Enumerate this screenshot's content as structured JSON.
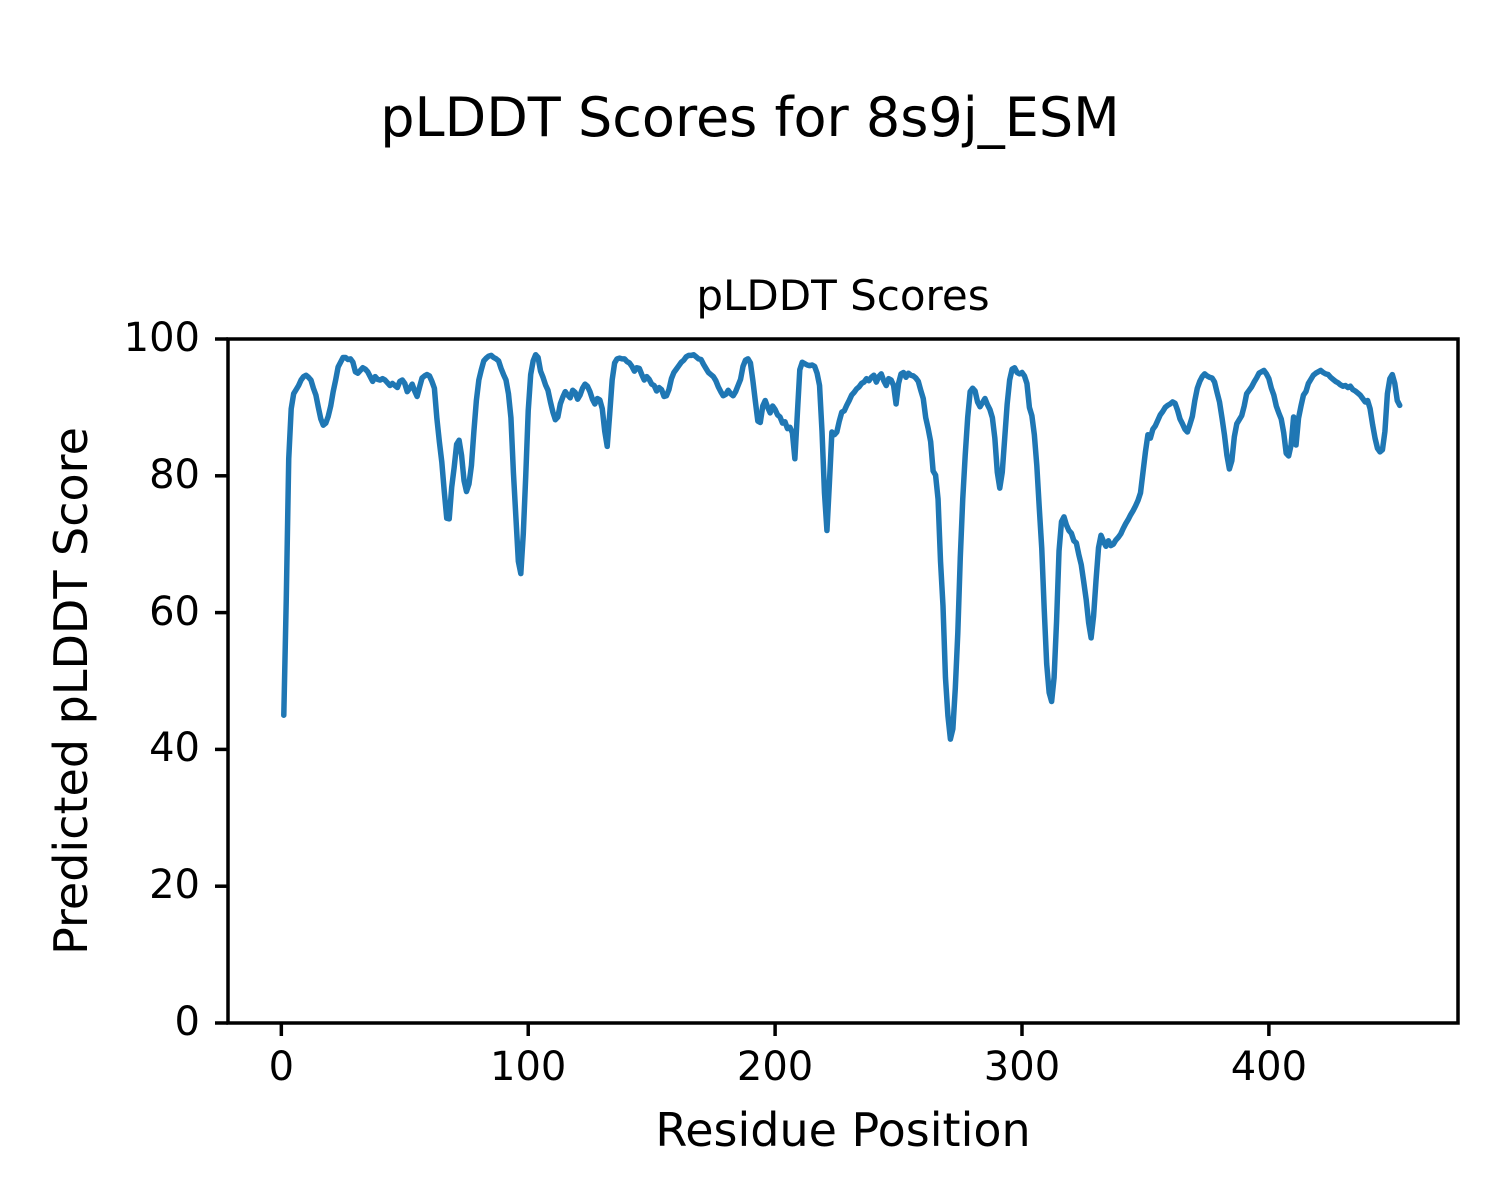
{
  "page": {
    "suptitle": "pLDDT Scores for 8s9j_ESM"
  },
  "chart_data": {
    "type": "line",
    "title": "pLDDT Scores",
    "xlabel": "Residue Position",
    "ylabel": "Predicted pLDDT Score",
    "x_ticks": [
      0,
      100,
      200,
      300,
      400
    ],
    "y_ticks": [
      0,
      20,
      40,
      60,
      80,
      100
    ],
    "xlim": [
      -21.6,
      476.6
    ],
    "ylim": [
      0,
      100
    ],
    "grid": false,
    "legend": "none",
    "line_color": "#1f77b4",
    "axis_color": "#000000",
    "x_start": 1,
    "x_step": 1,
    "values": [
      45,
      62,
      82.5,
      89.8,
      92,
      92.6,
      93.2,
      94,
      94.5,
      94.7,
      94.4,
      94,
      92.8,
      91.8,
      90,
      88.3,
      87.4,
      87.7,
      88.7,
      90.2,
      92.3,
      94,
      95.9,
      96.6,
      97.3,
      97.3,
      97,
      97.1,
      96.6,
      95.2,
      95,
      95.4,
      95.8,
      95.6,
      95.2,
      94.5,
      93.8,
      94.5,
      94.1,
      94,
      94.2,
      94,
      93.6,
      93.2,
      93.5,
      93.2,
      92.9,
      93.8,
      94,
      93.5,
      92.3,
      92.8,
      93.4,
      92.4,
      91.6,
      93,
      94.3,
      94.6,
      94.8,
      94.6,
      93.8,
      92.8,
      88.4,
      85,
      82,
      77.7,
      73.8,
      73.7,
      78.3,
      81.2,
      84.6,
      85.2,
      83,
      79.3,
      77.7,
      78.8,
      81.5,
      86.5,
      91,
      94,
      95.5,
      96.8,
      97.2,
      97.5,
      97.6,
      97.3,
      97.1,
      96.8,
      95.7,
      94.8,
      94,
      92,
      88.5,
      80.5,
      74,
      67.5,
      65.7,
      71.5,
      80,
      89.5,
      94.8,
      96.8,
      97.7,
      97.3,
      95.3,
      94.4,
      93.3,
      92.5,
      90.8,
      89.3,
      88.2,
      88.6,
      90.5,
      91.5,
      92.3,
      91.8,
      91.4,
      92.5,
      92.2,
      91.2,
      91.8,
      92.8,
      93.4,
      93.1,
      92.3,
      91.2,
      90.5,
      91.3,
      91.1,
      89.8,
      86.5,
      84.3,
      89,
      94,
      96.5,
      97.1,
      97.2,
      97.1,
      97.1,
      96.7,
      96.5,
      96,
      95.3,
      95.8,
      95.7,
      94.8,
      94,
      94.5,
      94.1,
      93.4,
      93.2,
      92.4,
      92.9,
      92.6,
      91.6,
      91.7,
      92.6,
      94.2,
      95.1,
      95.6,
      96.1,
      96.6,
      96.9,
      97.4,
      97.6,
      97.6,
      97.7,
      97.4,
      97.1,
      97,
      96.3,
      95.7,
      95.1,
      94.8,
      94.5,
      93.9,
      93,
      92.3,
      91.7,
      91.9,
      92.5,
      92,
      91.7,
      92.3,
      93.2,
      94.1,
      96,
      96.9,
      97.1,
      96.5,
      93.9,
      90.9,
      88,
      87.8,
      90.2,
      91,
      90,
      89.2,
      90.2,
      89.7,
      88.9,
      88.6,
      87.7,
      87.9,
      86.9,
      87.1,
      86.3,
      82.5,
      89,
      95.5,
      96.6,
      96.4,
      96.2,
      96.1,
      96.2,
      96,
      95,
      93.2,
      86.5,
      77.5,
      72,
      79,
      86.4,
      86,
      86.4,
      88,
      89.3,
      89.5,
      90.3,
      91,
      91.8,
      92.2,
      92.7,
      93,
      93.5,
      93.7,
      94.2,
      93.9,
      94.4,
      94.7,
      93.7,
      94.5,
      94.9,
      93.9,
      93.2,
      94.2,
      94,
      93.2,
      90.5,
      93.5,
      94.9,
      95.1,
      94.4,
      95,
      94.7,
      94.6,
      94.3,
      93.8,
      92.5,
      91.3,
      88.5,
      86.9,
      85,
      80.7,
      80.1,
      76.6,
      67.5,
      61,
      50.5,
      44.9,
      41.5,
      43,
      49,
      57,
      68,
      76.6,
      83,
      88.5,
      92.3,
      92.8,
      92.4,
      90.8,
      90.1,
      90.7,
      91.3,
      90.4,
      89.7,
      88.5,
      85.5,
      80.5,
      78.2,
      80.5,
      85.5,
      90.5,
      94,
      95.6,
      95.8,
      95.1,
      94.9,
      95.1,
      94.6,
      93.5,
      90,
      88.8,
      86,
      81.5,
      75.3,
      69.4,
      60.5,
      52.5,
      48.3,
      47,
      50.5,
      58.7,
      69,
      73.3,
      74,
      72.8,
      72,
      71.6,
      70.5,
      70.2,
      68.5,
      67,
      64.5,
      61.9,
      58.5,
      56.3,
      59.5,
      64.8,
      69.5,
      71.3,
      70.4,
      69.7,
      70.5,
      69.8,
      70,
      70.6,
      71,
      71.5,
      72.3,
      73,
      73.6,
      74.3,
      74.9,
      75.6,
      76.4,
      77.5,
      80.5,
      83.5,
      86,
      85.5,
      86.8,
      87.3,
      88.1,
      88.9,
      89.4,
      90,
      90.3,
      90.5,
      90.8,
      90.6,
      89.6,
      88.3,
      87.6,
      86.8,
      86.4,
      87.5,
      88.7,
      91,
      92.8,
      93.8,
      94.5,
      94.9,
      94.6,
      94.4,
      94.3,
      93.7,
      92.2,
      90.8,
      88.5,
      86,
      83,
      81,
      82.2,
      85.7,
      87.6,
      88.2,
      88.8,
      90.2,
      92,
      92.5,
      93,
      93.7,
      94.3,
      95,
      95.2,
      95.4,
      94.9,
      94.2,
      92.8,
      91.8,
      90.2,
      89.2,
      88.3,
      86.3,
      83.3,
      82.9,
      84.5,
      88.6,
      84.5,
      88.4,
      90.2,
      91.8,
      92.3,
      93.5,
      94.1,
      94.7,
      95,
      95.2,
      95.4,
      95.1,
      94.9,
      94.8,
      94.4,
      94.1,
      93.8,
      93.6,
      93.3,
      93.1,
      93.2,
      92.9,
      93.1,
      92.6,
      92.4,
      92.1,
      91.8,
      91.3,
      90.8,
      91,
      89.8,
      87.5,
      85.5,
      84,
      83.5,
      83.8,
      86.5,
      92,
      94.2,
      94.8,
      93.5,
      91,
      90.3
    ]
  }
}
